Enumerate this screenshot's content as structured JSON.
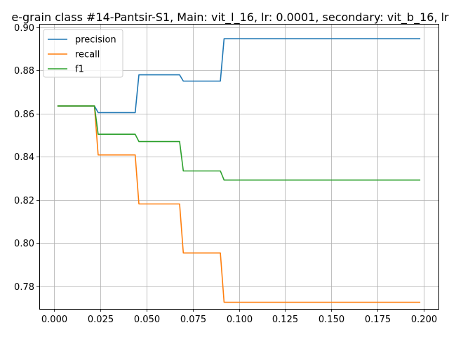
{
  "chart_data": {
    "type": "line",
    "title": "e-grain class #14-Pantsir-S1, Main: vit_l_16, lr: 0.0001, secondary: vit_b_16, lr",
    "xlabel": "",
    "ylabel": "",
    "xlim": [
      -0.0078,
      0.2078
    ],
    "ylim": [
      0.7696,
      0.9016
    ],
    "xticks": [
      "0.000",
      "0.025",
      "0.050",
      "0.075",
      "0.100",
      "0.125",
      "0.150",
      "0.175",
      "0.200"
    ],
    "yticks": [
      "0.78",
      "0.80",
      "0.82",
      "0.84",
      "0.86",
      "0.88",
      "0.90"
    ],
    "grid": true,
    "legend_position": "top-left",
    "series": [
      {
        "name": "precision",
        "color": "#1f77b4",
        "x": [
          0.002,
          0.022,
          0.024,
          0.044,
          0.046,
          0.068,
          0.07,
          0.09,
          0.092,
          0.198
        ],
        "y": [
          0.8636,
          0.8636,
          0.8605,
          0.8605,
          0.878,
          0.878,
          0.8751,
          0.8751,
          0.8947,
          0.8947
        ]
      },
      {
        "name": "recall",
        "color": "#ff7f0e",
        "x": [
          0.002,
          0.022,
          0.024,
          0.044,
          0.046,
          0.068,
          0.07,
          0.09,
          0.092,
          0.198
        ],
        "y": [
          0.8636,
          0.8636,
          0.8409,
          0.8409,
          0.8182,
          0.8182,
          0.7955,
          0.7955,
          0.7727,
          0.7727
        ]
      },
      {
        "name": "f1",
        "color": "#2ca02c",
        "x": [
          0.002,
          0.022,
          0.024,
          0.044,
          0.046,
          0.068,
          0.07,
          0.09,
          0.092,
          0.198
        ],
        "y": [
          0.8636,
          0.8636,
          0.8505,
          0.8505,
          0.8471,
          0.8471,
          0.8335,
          0.8335,
          0.8293,
          0.8293
        ]
      }
    ]
  }
}
